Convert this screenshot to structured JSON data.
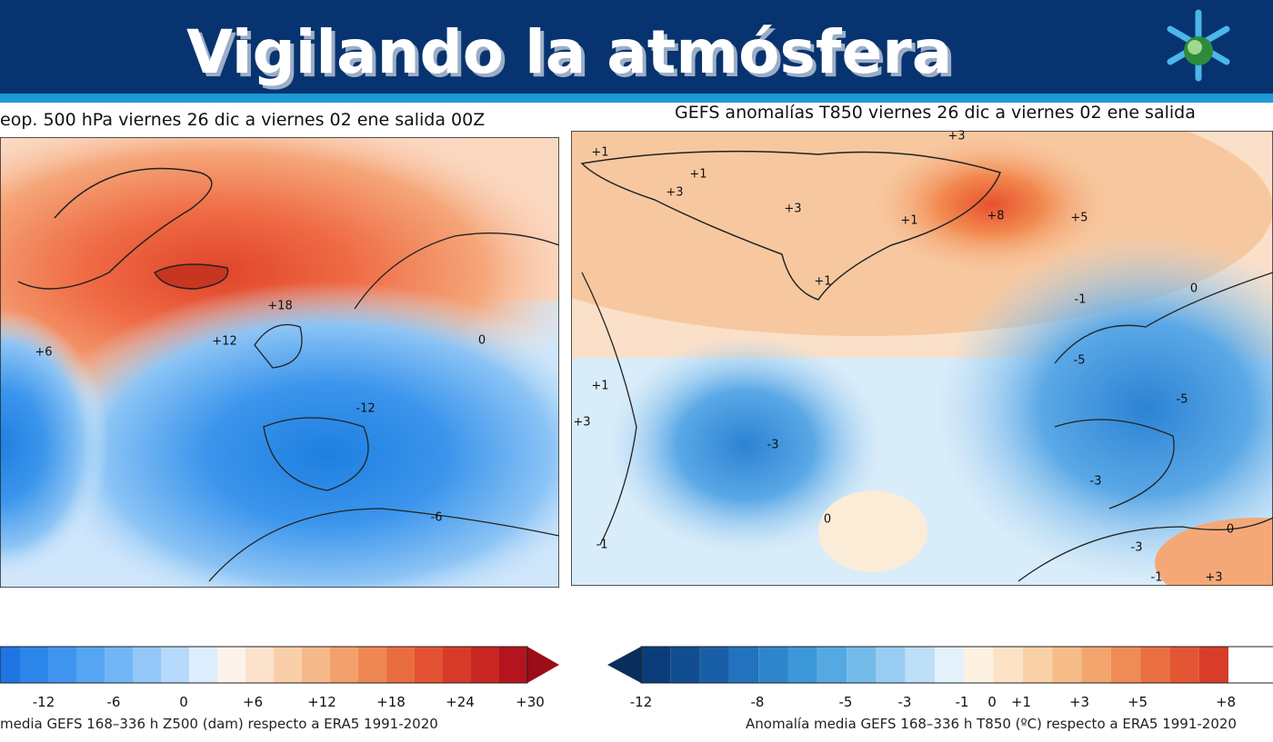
{
  "header": {
    "title": "Vigilando la atmósfera"
  },
  "panels": [
    {
      "title": "eop. 500 hPa viernes 26 dic a viernes 02 ene salida 00Z",
      "contour_labels": [
        "+18",
        "+12",
        "+6",
        "0",
        "-12",
        "-6"
      ],
      "colorbar": {
        "ticks": [
          "-12",
          "-6",
          "0",
          "+6",
          "+12",
          "+18",
          "+24",
          "+30"
        ],
        "caption": "media GEFS 168–336 h Z500 (dam) respecto a ERA5 1991-2020"
      }
    },
    {
      "title": "GEFS anomalías T850 viernes 26 dic a viernes 02 ene salida",
      "contour_labels": [
        "+3",
        "+1",
        "+1",
        "+3",
        "+3",
        "+1",
        "+8",
        "+5",
        "+1",
        "-1",
        "0",
        "+1",
        "+3",
        "-3",
        "0",
        "-5",
        "-5",
        "-3",
        "-3",
        "-1",
        "+3",
        "0",
        "-1"
      ],
      "colorbar": {
        "ticks": [
          "-12",
          "-8",
          "-5",
          "-3",
          "-1",
          "0",
          "+1",
          "+3",
          "+5",
          "+8"
        ],
        "caption": "Anomalía media GEFS 168–336 h T850 (ºC) respecto a ERA5 1991-2020"
      }
    }
  ]
}
